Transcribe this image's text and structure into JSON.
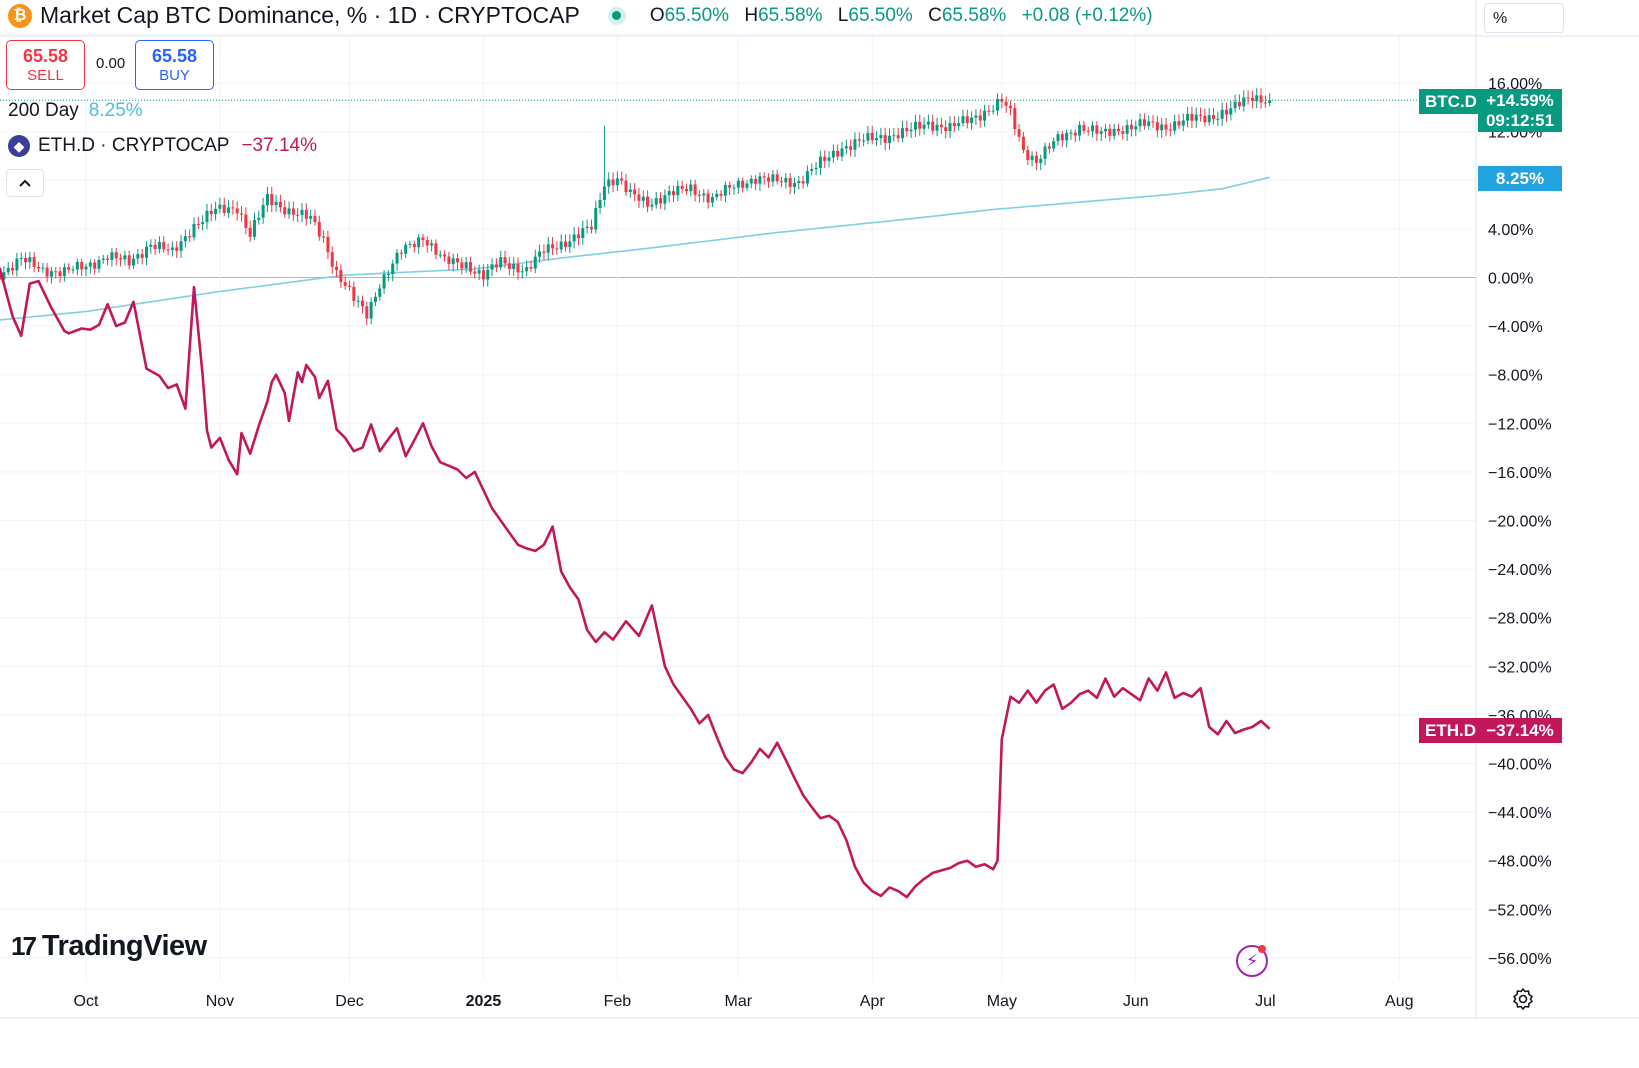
{
  "symbol": {
    "icon": "bitcoin-icon",
    "title": "Market Cap BTC Dominance, % · 1D · CRYPTOCAP",
    "ohlc": {
      "o_label": "O",
      "o": "65.50%",
      "h_label": "H",
      "h": "65.58%",
      "l_label": "L",
      "l": "65.50%",
      "c_label": "C",
      "c": "65.58%",
      "change": "+0.08 (+0.12%)"
    }
  },
  "trade": {
    "sell_price": "65.58",
    "sell_label": "SELL",
    "spread": "0.00",
    "buy_price": "65.58",
    "buy_label": "BUY"
  },
  "indicator": {
    "label": "200 Day",
    "value": "8.25%"
  },
  "compare": {
    "icon": "ethereum-icon",
    "label": "ETH.D · CRYPTOCAP",
    "value": "−37.14%"
  },
  "price_scale": {
    "unit": "%"
  },
  "tags": {
    "btc_name": "BTC.D",
    "btc_value": "+14.59%",
    "btc_countdown": "09:12:51",
    "ma_value": "8.25%",
    "eth_name": "ETH.D",
    "eth_value": "−37.14%"
  },
  "brand": {
    "name": "TradingView"
  },
  "colors": {
    "up": "#089981",
    "down": "#f23645",
    "ma": "#7fd0e3",
    "eth": "#c2185b",
    "grid": "#f0f3fa",
    "zero": "#b2b5be"
  },
  "chart_data": {
    "type": "line",
    "title": "Market Cap BTC Dominance, % · 1D · CRYPTOCAP",
    "ylabel": "%",
    "ylim": [
      -57,
      20
    ],
    "y_ticks": [
      {
        "value": 16,
        "label": "16.00%"
      },
      {
        "value": 12,
        "label": "12.00%"
      },
      {
        "value": 4,
        "label": "4.00%"
      },
      {
        "value": 0,
        "label": "0.00%"
      },
      {
        "value": -4,
        "label": "−4.00%"
      },
      {
        "value": -8,
        "label": "−8.00%"
      },
      {
        "value": -12,
        "label": "−12.00%"
      },
      {
        "value": -16,
        "label": "−16.00%"
      },
      {
        "value": -20,
        "label": "−20.00%"
      },
      {
        "value": -24,
        "label": "−24.00%"
      },
      {
        "value": -28,
        "label": "−28.00%"
      },
      {
        "value": -32,
        "label": "−32.00%"
      },
      {
        "value": -36,
        "label": "−36.00%"
      },
      {
        "value": -40,
        "label": "−40.00%"
      },
      {
        "value": -44,
        "label": "−44.00%"
      },
      {
        "value": -48,
        "label": "−48.00%"
      },
      {
        "value": -52,
        "label": "−52.00%"
      },
      {
        "value": -56,
        "label": "−56.00%"
      }
    ],
    "x_ticks": [
      {
        "day": 0,
        "label": "Oct"
      },
      {
        "day": 31,
        "label": "Nov"
      },
      {
        "day": 61,
        "label": "Dec"
      },
      {
        "day": 92,
        "label": "2025"
      },
      {
        "day": 123,
        "label": "Feb"
      },
      {
        "day": 151,
        "label": "Mar"
      },
      {
        "day": 182,
        "label": "Apr"
      },
      {
        "day": 212,
        "label": "May"
      },
      {
        "day": 243,
        "label": "Jun"
      },
      {
        "day": 273,
        "label": "Jul"
      },
      {
        "day": 304,
        "label": "Aug"
      }
    ],
    "x_range_days": [
      -20,
      327
    ],
    "series": [
      {
        "name": "BTC.D",
        "kind": "candlestick",
        "anchors_day": [
          -20,
          -15,
          -10,
          -5,
          0,
          5,
          10,
          15,
          20,
          25,
          30,
          35,
          38,
          42,
          47,
          52,
          55,
          58,
          62,
          65,
          68,
          73,
          78,
          83,
          88,
          92,
          96,
          102,
          106,
          112,
          117,
          120,
          123,
          126,
          130,
          135,
          140,
          145,
          150,
          155,
          160,
          165,
          170,
          175,
          180,
          185,
          190,
          195,
          200,
          205,
          210,
          212,
          214,
          217,
          220,
          225,
          230,
          235,
          240,
          245,
          250,
          255,
          260,
          265,
          270,
          274
        ],
        "anchors_value": [
          0.3,
          1.5,
          0.6,
          0.5,
          0.9,
          1.8,
          1.2,
          2.8,
          2.0,
          4.3,
          5.5,
          5.8,
          3.5,
          6.5,
          5.5,
          4.8,
          3.2,
          0.4,
          -1.8,
          -3.0,
          -0.5,
          2.1,
          3.4,
          1.3,
          1.1,
          0.1,
          1.3,
          0.6,
          2.2,
          3.1,
          4.1,
          7.8,
          8.2,
          6.8,
          6.1,
          6.9,
          7.3,
          6.5,
          7.5,
          8.2,
          7.9,
          7.9,
          9.4,
          10.7,
          11.3,
          11.6,
          12.0,
          12.7,
          12.3,
          13.1,
          14.0,
          14.5,
          13.5,
          10.5,
          9.6,
          11.4,
          12.4,
          11.8,
          12.3,
          12.6,
          12.4,
          13.0,
          13.2,
          13.8,
          14.9,
          14.59
        ],
        "last_value": 14.59
      },
      {
        "name": "200 Day",
        "kind": "line",
        "anchors_day": [
          -20,
          0,
          30,
          60,
          90,
          110,
          130,
          160,
          190,
          210,
          230,
          250,
          263,
          274
        ],
        "anchors_value": [
          -3.5,
          -2.8,
          -1.2,
          0.2,
          0.7,
          1.6,
          2.4,
          3.7,
          4.8,
          5.6,
          6.2,
          6.8,
          7.3,
          8.25
        ],
        "last_value": 8.25
      },
      {
        "name": "ETH.D",
        "kind": "line",
        "anchors_day": [
          -20,
          -17,
          -15,
          -13,
          -11,
          -8,
          -5,
          -4,
          -1,
          1,
          3,
          5,
          7,
          9,
          11,
          14,
          17,
          19,
          21,
          23,
          25,
          27,
          28,
          29,
          31,
          33,
          35,
          36,
          38,
          40,
          42,
          43,
          44,
          46,
          47,
          49,
          50,
          51,
          53,
          54,
          56,
          58,
          60,
          62,
          64,
          66,
          68,
          70,
          72,
          74,
          76,
          78,
          80,
          82,
          84,
          86,
          88,
          90,
          92,
          94,
          97,
          100,
          102,
          104,
          106,
          108,
          110,
          112,
          114,
          116,
          118,
          120,
          122,
          125,
          128,
          131,
          134,
          136,
          138,
          140,
          142,
          144,
          146,
          148,
          150,
          152,
          154,
          156,
          158,
          160,
          162,
          164,
          166,
          168,
          170,
          172,
          174,
          176,
          178,
          180,
          182,
          184,
          186,
          188,
          190,
          192,
          194,
          196,
          198,
          200,
          202,
          204,
          206,
          208,
          210,
          211,
          212,
          214,
          216,
          218,
          220,
          222,
          224,
          226,
          228,
          230,
          232,
          234,
          236,
          238,
          240,
          242,
          244,
          246,
          248,
          250,
          252,
          254,
          256,
          258,
          260,
          262,
          264,
          266,
          268,
          270,
          272,
          274
        ],
        "anchors_value": [
          0.8,
          -3.2,
          -4.8,
          -0.5,
          -0.3,
          -2.5,
          -4.4,
          -4.6,
          -4.2,
          -4.3,
          -3.9,
          -2.2,
          -4.0,
          -3.7,
          -2.0,
          -7.5,
          -8.1,
          -9.1,
          -8.8,
          -10.8,
          -0.8,
          -8.0,
          -12.6,
          -14.0,
          -13.2,
          -15.0,
          -16.2,
          -12.8,
          -14.5,
          -12.2,
          -10.2,
          -8.6,
          -8.0,
          -9.5,
          -11.8,
          -7.8,
          -8.6,
          -7.2,
          -8.2,
          -9.9,
          -8.5,
          -12.5,
          -13.2,
          -14.3,
          -14.0,
          -12.1,
          -14.3,
          -13.3,
          -12.4,
          -14.7,
          -13.4,
          -12.0,
          -13.9,
          -15.2,
          -15.5,
          -15.8,
          -16.5,
          -16.0,
          -17.5,
          -19.0,
          -20.5,
          -22.0,
          -22.3,
          -22.5,
          -22.0,
          -20.5,
          -24.2,
          -25.5,
          -26.5,
          -29.0,
          -30.0,
          -29.2,
          -29.8,
          -28.3,
          -29.5,
          -27.0,
          -32.0,
          -33.5,
          -34.5,
          -35.5,
          -36.7,
          -36.0,
          -37.8,
          -39.5,
          -40.5,
          -40.8,
          -39.9,
          -38.8,
          -39.5,
          -38.3,
          -39.7,
          -41.2,
          -42.6,
          -43.6,
          -44.5,
          -44.3,
          -44.8,
          -46.3,
          -48.5,
          -49.8,
          -50.5,
          -50.9,
          -50.2,
          -50.5,
          -51.0,
          -50.1,
          -49.5,
          -49.0,
          -48.8,
          -48.6,
          -48.2,
          -48.0,
          -48.5,
          -48.3,
          -48.7,
          -48.0,
          -38.0,
          -34.5,
          -35.0,
          -34.0,
          -35.0,
          -34.0,
          -33.5,
          -35.5,
          -35.0,
          -34.3,
          -34.0,
          -34.6,
          -33.0,
          -34.5,
          -33.8,
          -34.3,
          -34.8,
          -33.0,
          -34.0,
          -32.5,
          -34.6,
          -34.2,
          -34.5,
          -33.8,
          -37.0,
          -37.6,
          -36.5,
          -37.5,
          -37.2,
          -37.0,
          -36.5,
          -37.14
        ],
        "last_value": -37.14
      }
    ],
    "legend": "top-left"
  }
}
